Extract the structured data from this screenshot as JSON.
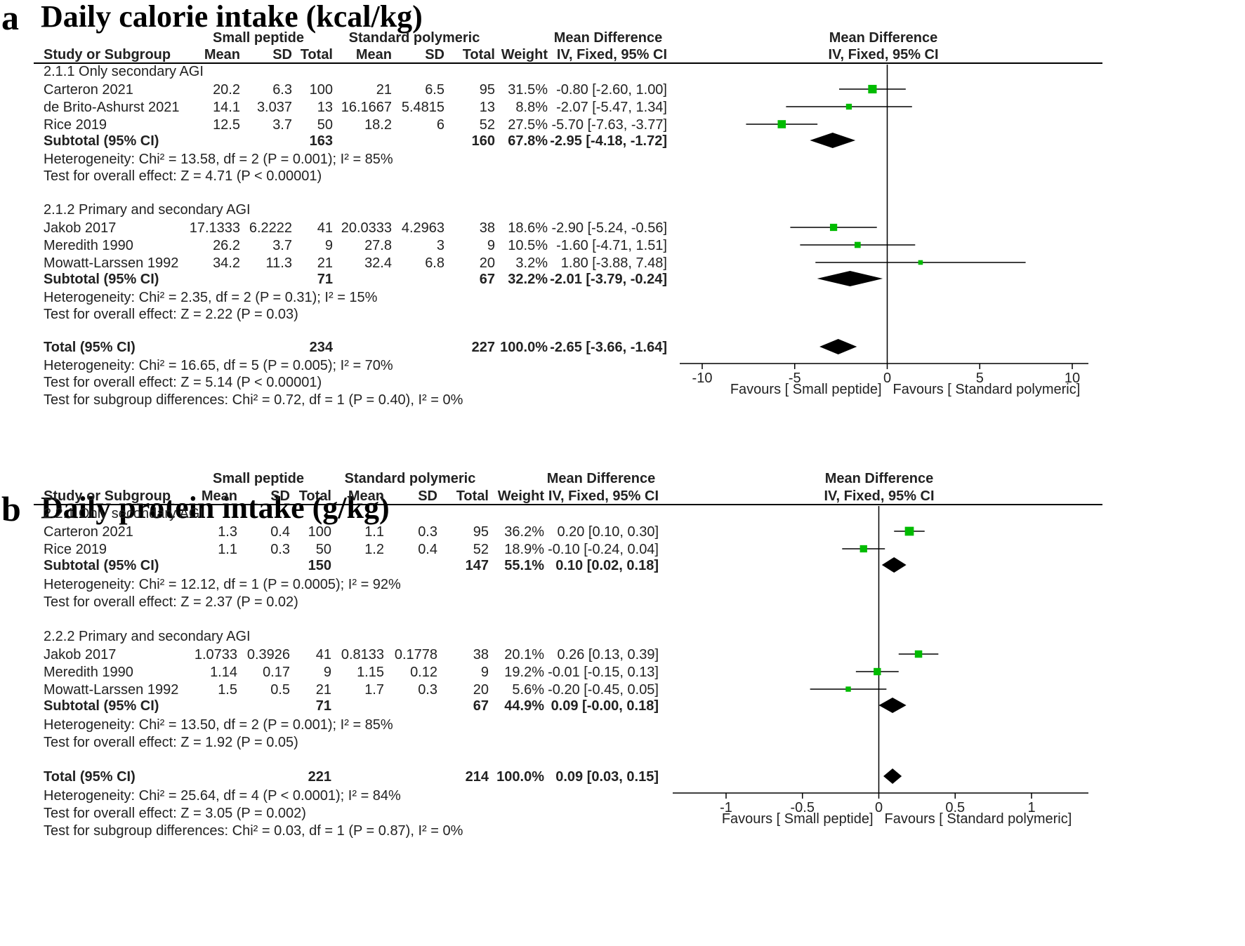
{
  "chart_data": [
    {
      "type": "forest",
      "panel_label": "a",
      "title": "Daily calorie intake (kcal/kg)",
      "header": {
        "group1": "Small peptide",
        "group2": "Standard polymeric",
        "effect": "Mean Difference",
        "plot_effect": "Mean Difference",
        "study_col": "Study or Subgroup",
        "mean": "Mean",
        "sd": "SD",
        "total": "Total",
        "weight": "Weight",
        "method": "IV, Fixed, 95% CI",
        "plot_method": "IV, Fixed, 95% CI"
      },
      "xlim": [
        -10,
        10
      ],
      "ticks": [
        -10,
        -5,
        0,
        5,
        10
      ],
      "tick_labels": [
        "-10",
        "-5",
        "0",
        "5",
        "10"
      ],
      "favours_left": "Favours [ Small peptide]",
      "favours_right": "Favours [ Standard polymeric]",
      "subgroups": [
        {
          "label": "2.1.1 Only secondary AGI",
          "studies": [
            {
              "name": "Carteron 2021",
              "m1": "20.2",
              "sd1": "6.3",
              "n1": "100",
              "m2": "21",
              "sd2": "6.5",
              "n2": "95",
              "weight": "31.5%",
              "ci_text": "-0.80 [-2.60, 1.00]",
              "est": -0.8,
              "lo": -2.6,
              "hi": 1.0,
              "w": 31.5
            },
            {
              "name": "de Brito-Ashurst 2021",
              "m1": "14.1",
              "sd1": "3.037",
              "n1": "13",
              "m2": "16.1667",
              "sd2": "5.4815",
              "n2": "13",
              "weight": "8.8%",
              "ci_text": "-2.07 [-5.47, 1.34]",
              "est": -2.07,
              "lo": -5.47,
              "hi": 1.34,
              "w": 8.8
            },
            {
              "name": "Rice 2019",
              "m1": "12.5",
              "sd1": "3.7",
              "n1": "50",
              "m2": "18.2",
              "sd2": "6",
              "n2": "52",
              "weight": "27.5%",
              "ci_text": "-5.70 [-7.63, -3.77]",
              "est": -5.7,
              "lo": -7.63,
              "hi": -3.77,
              "w": 27.5
            }
          ],
          "subtotal": {
            "label": "Subtotal (95% CI)",
            "n1": "163",
            "n2": "160",
            "weight": "67.8%",
            "ci_text": "-2.95 [-4.18, -1.72]",
            "est": -2.95,
            "lo": -4.18,
            "hi": -1.72
          },
          "heterogeneity": "Heterogeneity: Chi² = 13.58, df = 2 (P = 0.001); I² = 85%",
          "overall": "Test for overall effect: Z = 4.71 (P < 0.00001)"
        },
        {
          "label": "2.1.2 Primary and secondary AGI",
          "studies": [
            {
              "name": "Jakob 2017",
              "m1": "17.1333",
              "sd1": "6.2222",
              "n1": "41",
              "m2": "20.0333",
              "sd2": "4.2963",
              "n2": "38",
              "weight": "18.6%",
              "ci_text": "-2.90 [-5.24, -0.56]",
              "est": -2.9,
              "lo": -5.24,
              "hi": -0.56,
              "w": 18.6
            },
            {
              "name": "Meredith 1990",
              "m1": "26.2",
              "sd1": "3.7",
              "n1": "9",
              "m2": "27.8",
              "sd2": "3",
              "n2": "9",
              "weight": "10.5%",
              "ci_text": "-1.60 [-4.71, 1.51]",
              "est": -1.6,
              "lo": -4.71,
              "hi": 1.51,
              "w": 10.5
            },
            {
              "name": "Mowatt-Larssen 1992",
              "m1": "34.2",
              "sd1": "11.3",
              "n1": "21",
              "m2": "32.4",
              "sd2": "6.8",
              "n2": "20",
              "weight": "3.2%",
              "ci_text": "1.80 [-3.88, 7.48]",
              "est": 1.8,
              "lo": -3.88,
              "hi": 7.48,
              "w": 3.2
            }
          ],
          "subtotal": {
            "label": "Subtotal (95% CI)",
            "n1": "71",
            "n2": "67",
            "weight": "32.2%",
            "ci_text": "-2.01 [-3.79, -0.24]",
            "est": -2.01,
            "lo": -3.79,
            "hi": -0.24
          },
          "heterogeneity": "Heterogeneity: Chi² = 2.35, df = 2 (P = 0.31); I² = 15%",
          "overall": "Test for overall effect: Z = 2.22 (P = 0.03)"
        }
      ],
      "total": {
        "label": "Total (95% CI)",
        "n1": "234",
        "n2": "227",
        "weight": "100.0%",
        "ci_text": "-2.65 [-3.66, -1.64]",
        "est": -2.65,
        "lo": -3.66,
        "hi": -1.64
      },
      "total_heterogeneity": "Heterogeneity: Chi² = 16.65, df = 5 (P = 0.005); I² = 70%",
      "total_overall": "Test for overall effect: Z = 5.14 (P < 0.00001)",
      "subgroup_diff": "Test for subgroup differences: Chi² = 0.72, df = 1 (P = 0.40), I² = 0%"
    },
    {
      "type": "forest",
      "panel_label": "b",
      "title": "Daily protein intake (g/kg)",
      "header": {
        "group1": "Small peptide",
        "group2": "Standard polymeric",
        "effect": "Mean Difference",
        "plot_effect": "Mean Difference",
        "study_col": "Study or Subgroup",
        "mean": "Mean",
        "sd": "SD",
        "total": "Total",
        "weight": "Weight",
        "method": "IV, Fixed, 95% CI",
        "plot_method": "IV, Fixed, 95% CI"
      },
      "xlim": [
        -1,
        1
      ],
      "ticks": [
        -1,
        -0.5,
        0,
        0.5,
        1
      ],
      "tick_labels": [
        "-1",
        "-0.5",
        "0",
        "0.5",
        "1"
      ],
      "favours_left": "Favours [ Small peptide]",
      "favours_right": "Favours [ Standard polymeric]",
      "subgroups": [
        {
          "label": "2.2.1 Only secondary AGI",
          "studies": [
            {
              "name": "Carteron 2021",
              "m1": "1.3",
              "sd1": "0.4",
              "n1": "100",
              "m2": "1.1",
              "sd2": "0.3",
              "n2": "95",
              "weight": "36.2%",
              "ci_text": "0.20 [0.10, 0.30]",
              "est": 0.2,
              "lo": 0.1,
              "hi": 0.3,
              "w": 36.2
            },
            {
              "name": "Rice 2019",
              "m1": "1.1",
              "sd1": "0.3",
              "n1": "50",
              "m2": "1.2",
              "sd2": "0.4",
              "n2": "52",
              "weight": "18.9%",
              "ci_text": "-0.10 [-0.24, 0.04]",
              "est": -0.1,
              "lo": -0.24,
              "hi": 0.04,
              "w": 18.9
            }
          ],
          "subtotal": {
            "label": "Subtotal (95% CI)",
            "n1": "150",
            "n2": "147",
            "weight": "55.1%",
            "ci_text": "0.10 [0.02, 0.18]",
            "est": 0.1,
            "lo": 0.02,
            "hi": 0.18
          },
          "heterogeneity": "Heterogeneity: Chi² = 12.12, df = 1 (P = 0.0005); I² = 92%",
          "overall": "Test for overall effect: Z = 2.37 (P = 0.02)"
        },
        {
          "label": "2.2.2 Primary and secondary AGI",
          "studies": [
            {
              "name": "Jakob 2017",
              "m1": "1.0733",
              "sd1": "0.3926",
              "n1": "41",
              "m2": "0.8133",
              "sd2": "0.1778",
              "n2": "38",
              "weight": "20.1%",
              "ci_text": "0.26 [0.13, 0.39]",
              "est": 0.26,
              "lo": 0.13,
              "hi": 0.39,
              "w": 20.1
            },
            {
              "name": "Meredith 1990",
              "m1": "1.14",
              "sd1": "0.17",
              "n1": "9",
              "m2": "1.15",
              "sd2": "0.12",
              "n2": "9",
              "weight": "19.2%",
              "ci_text": "-0.01 [-0.15, 0.13]",
              "est": -0.01,
              "lo": -0.15,
              "hi": 0.13,
              "w": 19.2
            },
            {
              "name": "Mowatt-Larssen 1992",
              "m1": "1.5",
              "sd1": "0.5",
              "n1": "21",
              "m2": "1.7",
              "sd2": "0.3",
              "n2": "20",
              "weight": "5.6%",
              "ci_text": "-0.20 [-0.45, 0.05]",
              "est": -0.2,
              "lo": -0.45,
              "hi": 0.05,
              "w": 5.6
            }
          ],
          "subtotal": {
            "label": "Subtotal (95% CI)",
            "n1": "71",
            "n2": "67",
            "weight": "44.9%",
            "ci_text": "0.09 [-0.00, 0.18]",
            "est": 0.09,
            "lo": 0.0,
            "hi": 0.18
          },
          "heterogeneity": "Heterogeneity: Chi² = 13.50, df = 2 (P = 0.001); I² = 85%",
          "overall": "Test for overall effect: Z = 1.92 (P = 0.05)"
        }
      ],
      "total": {
        "label": "Total (95% CI)",
        "n1": "221",
        "n2": "214",
        "weight": "100.0%",
        "ci_text": "0.09 [0.03, 0.15]",
        "est": 0.09,
        "lo": 0.03,
        "hi": 0.15
      },
      "total_heterogeneity": "Heterogeneity: Chi² = 25.64, df = 4 (P < 0.0001); I² = 84%",
      "total_overall": "Test for overall effect: Z = 3.05 (P = 0.002)",
      "subgroup_diff": "Test for subgroup differences: Chi² = 0.03, df = 1 (P = 0.87), I² = 0%"
    }
  ],
  "colors": {
    "study_marker": "#00bb00",
    "diamond": "#000000",
    "text": "#222222"
  }
}
